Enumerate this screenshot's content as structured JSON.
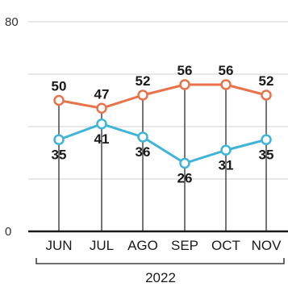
{
  "chart_data": {
    "type": "line",
    "categories": [
      "JUN",
      "JUL",
      "AGO",
      "SEP",
      "OCT",
      "NOV"
    ],
    "series": [
      {
        "values": [
          50,
          47,
          52,
          56,
          56,
          52
        ],
        "color": "#e8734a",
        "label_position": "above"
      },
      {
        "values": [
          35,
          41,
          36,
          26,
          31,
          35
        ],
        "color": "#3fb4d8",
        "label_position": "below"
      }
    ],
    "y_ticks": [
      0,
      80
    ],
    "ylim": [
      0,
      80
    ],
    "group_label": "2022",
    "grid": true,
    "colors": {
      "axis": "#1a1a1a",
      "grid": "#cfcfcf",
      "drop_lines": "#1a1a1a"
    }
  }
}
